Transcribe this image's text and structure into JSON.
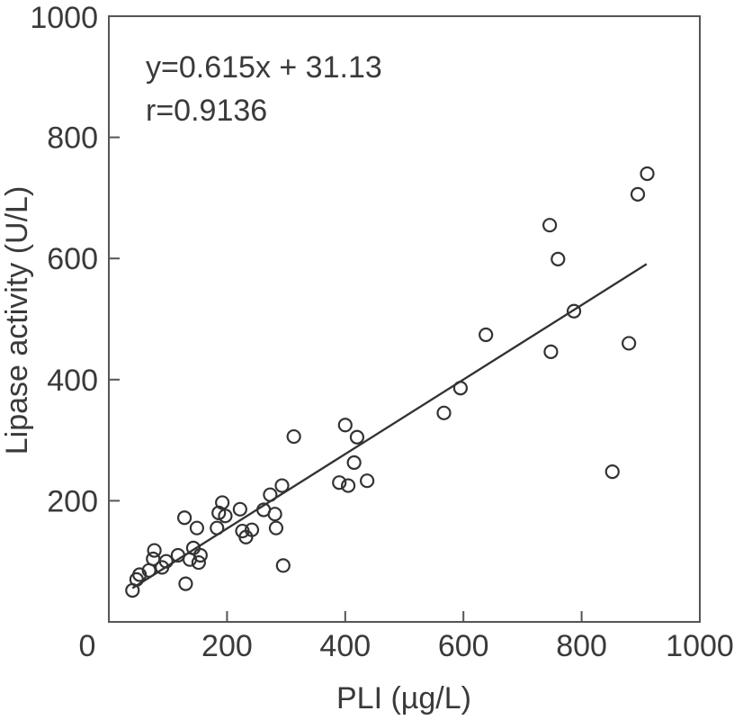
{
  "chart_data": {
    "type": "scatter",
    "xlabel": "PLI (µg/L)",
    "ylabel": "Lipase activity (U/L)",
    "xlim": [
      0,
      1000
    ],
    "ylim": [
      0,
      1000
    ],
    "x_ticks": [
      "0",
      "200",
      "400",
      "600",
      "800",
      "1000"
    ],
    "y_ticks": [
      "200",
      "400",
      "600",
      "800",
      "1000"
    ],
    "grid": false,
    "annotations": {
      "equation": "y=0.615x + 31.13",
      "r": "r=0.9136"
    },
    "fit_line": {
      "slope": 0.615,
      "intercept": 31.13,
      "x_range": [
        40,
        910
      ]
    },
    "points": [
      {
        "x": 40,
        "y": 52
      },
      {
        "x": 47,
        "y": 70
      },
      {
        "x": 52,
        "y": 78
      },
      {
        "x": 68,
        "y": 85
      },
      {
        "x": 75,
        "y": 104
      },
      {
        "x": 77,
        "y": 118
      },
      {
        "x": 90,
        "y": 90
      },
      {
        "x": 97,
        "y": 100
      },
      {
        "x": 117,
        "y": 110
      },
      {
        "x": 128,
        "y": 172
      },
      {
        "x": 130,
        "y": 63
      },
      {
        "x": 137,
        "y": 103
      },
      {
        "x": 143,
        "y": 122
      },
      {
        "x": 149,
        "y": 155
      },
      {
        "x": 152,
        "y": 98
      },
      {
        "x": 155,
        "y": 110
      },
      {
        "x": 183,
        "y": 155
      },
      {
        "x": 186,
        "y": 180
      },
      {
        "x": 192,
        "y": 197
      },
      {
        "x": 197,
        "y": 175
      },
      {
        "x": 222,
        "y": 186
      },
      {
        "x": 226,
        "y": 150
      },
      {
        "x": 232,
        "y": 140
      },
      {
        "x": 242,
        "y": 152
      },
      {
        "x": 262,
        "y": 185
      },
      {
        "x": 273,
        "y": 210
      },
      {
        "x": 281,
        "y": 178
      },
      {
        "x": 283,
        "y": 155
      },
      {
        "x": 293,
        "y": 225
      },
      {
        "x": 295,
        "y": 93
      },
      {
        "x": 313,
        "y": 306
      },
      {
        "x": 390,
        "y": 230
      },
      {
        "x": 400,
        "y": 325
      },
      {
        "x": 405,
        "y": 225
      },
      {
        "x": 415,
        "y": 263
      },
      {
        "x": 420,
        "y": 305
      },
      {
        "x": 437,
        "y": 233
      },
      {
        "x": 567,
        "y": 345
      },
      {
        "x": 595,
        "y": 386
      },
      {
        "x": 638,
        "y": 474
      },
      {
        "x": 746,
        "y": 655
      },
      {
        "x": 748,
        "y": 446
      },
      {
        "x": 760,
        "y": 599
      },
      {
        "x": 787,
        "y": 513
      },
      {
        "x": 852,
        "y": 248
      },
      {
        "x": 880,
        "y": 460
      },
      {
        "x": 895,
        "y": 706
      },
      {
        "x": 911,
        "y": 740
      }
    ]
  }
}
